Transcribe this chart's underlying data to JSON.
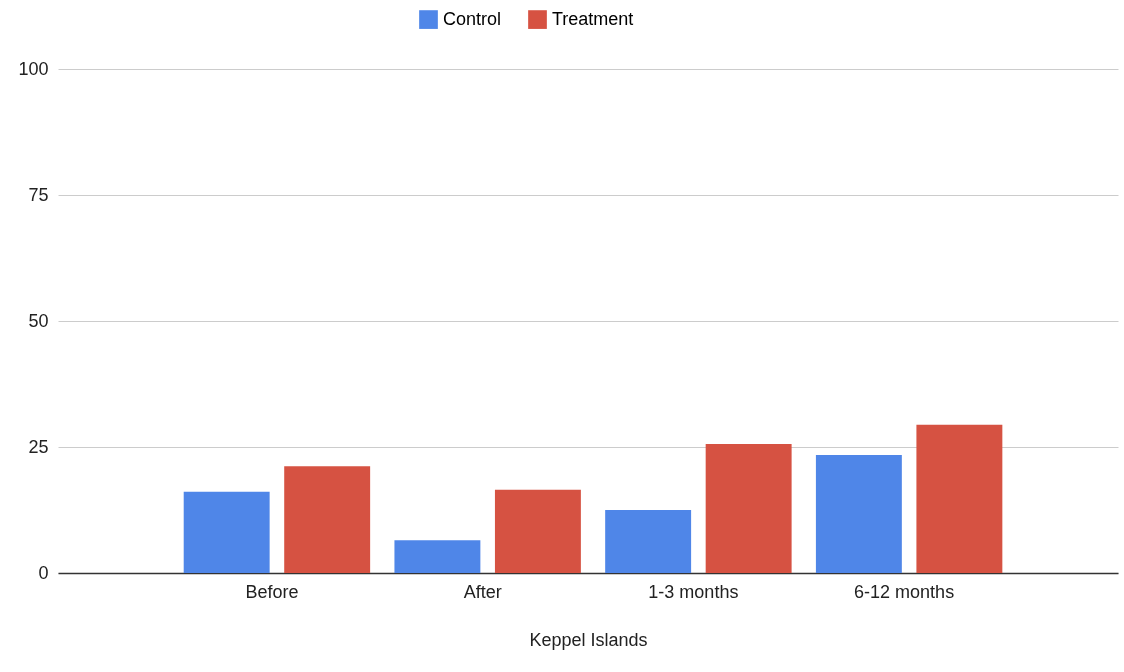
{
  "chart_data": {
    "type": "bar",
    "xlabel": "Keppel Islands",
    "categories": [
      "Before",
      "After",
      "1-3 months",
      "6-12 months"
    ],
    "series": [
      {
        "name": "Control",
        "color": "#4f86e8",
        "values": [
          16.1,
          6.5,
          12.5,
          23.4
        ]
      },
      {
        "name": "Treatment",
        "color": "#d65242",
        "values": [
          21.2,
          16.5,
          25.6,
          29.4
        ]
      }
    ],
    "ylim": [
      0,
      100
    ],
    "yticks": [
      0,
      25,
      50,
      75,
      100
    ],
    "grid": "y",
    "legend": "top"
  }
}
